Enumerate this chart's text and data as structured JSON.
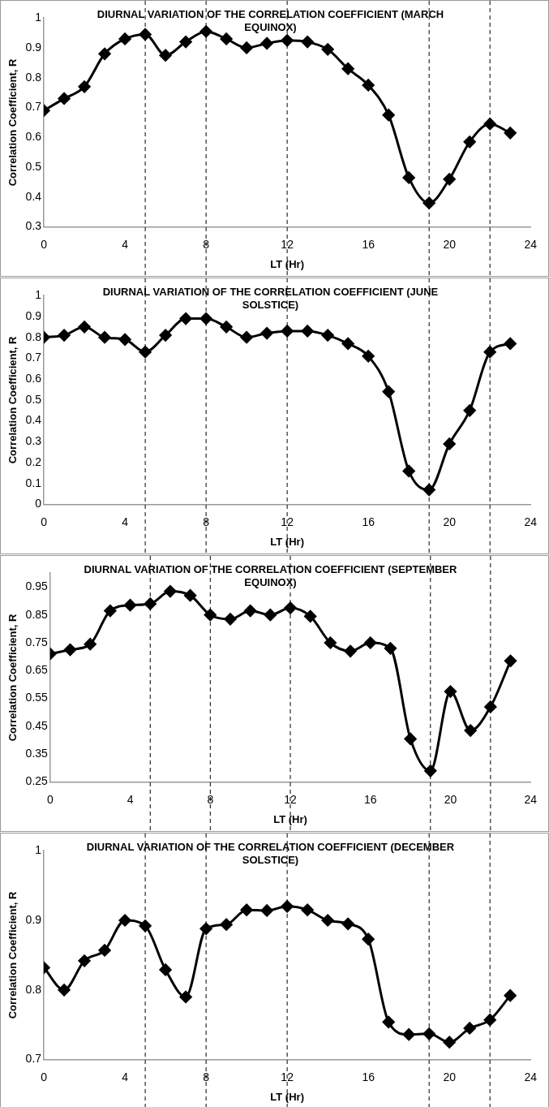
{
  "chart_data": [
    {
      "type": "line",
      "title": "DIURNAL VARIATION OF THE CORRELATION COEFFICIENT (MARCH EQUINOX)",
      "xlabel": "LT (Hr)",
      "ylabel": "Correlation Coefficient, R",
      "x": [
        0,
        1,
        2,
        3,
        4,
        5,
        6,
        7,
        8,
        9,
        10,
        11,
        12,
        13,
        14,
        15,
        16,
        17,
        18,
        19,
        20,
        21,
        22,
        23
      ],
      "series": [
        {
          "color": "#000000",
          "values": [
            0.69,
            0.73,
            0.77,
            0.88,
            0.93,
            0.945,
            0.875,
            0.92,
            0.955,
            0.93,
            0.9,
            0.915,
            0.925,
            0.92,
            0.895,
            0.83,
            0.775,
            0.675,
            0.465,
            0.38,
            0.46,
            0.585,
            0.645,
            0.615
          ]
        }
      ],
      "xlim": [
        0,
        24
      ],
      "xticks": [
        0,
        4,
        8,
        12,
        16,
        20,
        24
      ],
      "ylim": [
        0.3,
        1
      ],
      "yticks": [
        0.3,
        0.4,
        0.5,
        0.6,
        0.7,
        0.8,
        0.9,
        1
      ],
      "grid": false,
      "legend": false,
      "marker": "diamond",
      "line_style": "solid",
      "ref_lines": [
        {
          "axis": "x",
          "value": 5,
          "line_style": "dashed",
          "color": "#000000"
        },
        {
          "axis": "x",
          "value": 8,
          "line_style": "dashed",
          "color": "#000000"
        },
        {
          "axis": "x",
          "value": 12,
          "line_style": "dashed",
          "color": "#000000"
        },
        {
          "axis": "x",
          "value": 19,
          "line_style": "dashed",
          "color": "#000000"
        },
        {
          "axis": "x",
          "value": 22,
          "line_style": "dashed",
          "color": "#000000"
        }
      ]
    },
    {
      "type": "line",
      "title": "DIURNAL VARIATION OF THE CORRELATION COEFFICIENT (JUNE SOLSTICE)",
      "xlabel": "LT (Hr)",
      "ylabel": "Correlation Coefficient, R",
      "x": [
        0,
        1,
        2,
        3,
        4,
        5,
        6,
        7,
        8,
        9,
        10,
        11,
        12,
        13,
        14,
        15,
        16,
        17,
        18,
        19,
        20,
        21,
        22,
        23
      ],
      "series": [
        {
          "color": "#000000",
          "values": [
            0.8,
            0.81,
            0.85,
            0.8,
            0.79,
            0.73,
            0.81,
            0.89,
            0.89,
            0.85,
            0.8,
            0.82,
            0.83,
            0.83,
            0.81,
            0.77,
            0.71,
            0.54,
            0.16,
            0.07,
            0.29,
            0.45,
            0.73,
            0.77
          ]
        }
      ],
      "xlim": [
        0,
        24
      ],
      "xticks": [
        0,
        4,
        8,
        12,
        16,
        20,
        24
      ],
      "ylim": [
        0,
        1
      ],
      "yticks": [
        0,
        0.1,
        0.2,
        0.3,
        0.4,
        0.5,
        0.6,
        0.7,
        0.8,
        0.9,
        1
      ],
      "grid": false,
      "legend": false,
      "marker": "diamond",
      "line_style": "solid",
      "ref_lines": [
        {
          "axis": "x",
          "value": 5,
          "line_style": "dashed",
          "color": "#000000"
        },
        {
          "axis": "x",
          "value": 8,
          "line_style": "dashed",
          "color": "#000000"
        },
        {
          "axis": "x",
          "value": 12,
          "line_style": "dashed",
          "color": "#000000"
        },
        {
          "axis": "x",
          "value": 19,
          "line_style": "dashed",
          "color": "#000000"
        },
        {
          "axis": "x",
          "value": 22,
          "line_style": "dashed",
          "color": "#000000"
        }
      ]
    },
    {
      "type": "line",
      "title": "DIURNAL VARIATION OF THE CORRELATION COEFFICIENT (SEPTEMBER EQUINOX)",
      "xlabel": "LT (Hr)",
      "ylabel": "Correlation Coefficient, R",
      "x": [
        0,
        1,
        2,
        3,
        4,
        5,
        6,
        7,
        8,
        9,
        10,
        11,
        12,
        13,
        14,
        15,
        16,
        17,
        18,
        19,
        20,
        21,
        22,
        23
      ],
      "series": [
        {
          "color": "#000000",
          "values": [
            0.71,
            0.725,
            0.745,
            0.865,
            0.885,
            0.89,
            0.935,
            0.92,
            0.85,
            0.835,
            0.865,
            0.85,
            0.875,
            0.845,
            0.75,
            0.72,
            0.75,
            0.73,
            0.405,
            0.29,
            0.575,
            0.435,
            0.52,
            0.685
          ]
        }
      ],
      "xlim": [
        0,
        24
      ],
      "xticks": [
        0,
        4,
        8,
        12,
        16,
        20,
        24
      ],
      "ylim": [
        0.25,
        1
      ],
      "yticks": [
        0.25,
        0.35,
        0.45,
        0.55,
        0.65,
        0.75,
        0.85,
        0.95
      ],
      "grid": false,
      "legend": false,
      "marker": "diamond",
      "line_style": "solid",
      "ref_lines": [
        {
          "axis": "x",
          "value": 5,
          "line_style": "dashed",
          "color": "#000000"
        },
        {
          "axis": "x",
          "value": 8,
          "line_style": "dashed",
          "color": "#000000"
        },
        {
          "axis": "x",
          "value": 12,
          "line_style": "dashed",
          "color": "#000000"
        },
        {
          "axis": "x",
          "value": 19,
          "line_style": "dashed",
          "color": "#000000"
        },
        {
          "axis": "x",
          "value": 22,
          "line_style": "dashed",
          "color": "#000000"
        }
      ]
    },
    {
      "type": "line",
      "title": "DIURNAL VARIATION OF THE CORRELATION COEFFICIENT (DECEMBER SOLSTICE)",
      "xlabel": "LT (Hr)",
      "ylabel": "Correlation Coefficient, R",
      "x": [
        0,
        1,
        2,
        3,
        4,
        5,
        6,
        7,
        8,
        9,
        10,
        11,
        12,
        13,
        14,
        15,
        16,
        17,
        18,
        19,
        20,
        21,
        22,
        23
      ],
      "series": [
        {
          "color": "#000000",
          "values": [
            0.832,
            0.8,
            0.842,
            0.857,
            0.9,
            0.892,
            0.829,
            0.79,
            0.888,
            0.894,
            0.915,
            0.914,
            0.92,
            0.915,
            0.9,
            0.895,
            0.873,
            0.754,
            0.736,
            0.737,
            0.725,
            0.745,
            0.757,
            0.792
          ]
        }
      ],
      "xlim": [
        0,
        24
      ],
      "xticks": [
        0,
        4,
        8,
        12,
        16,
        20,
        24
      ],
      "ylim": [
        0.7,
        1
      ],
      "yticks": [
        0.7,
        0.8,
        0.9,
        1
      ],
      "grid": false,
      "legend": false,
      "marker": "diamond",
      "line_style": "solid",
      "ref_lines": [
        {
          "axis": "x",
          "value": 5,
          "line_style": "dashed",
          "color": "#000000"
        },
        {
          "axis": "x",
          "value": 8,
          "line_style": "dashed",
          "color": "#000000"
        },
        {
          "axis": "x",
          "value": 12,
          "line_style": "dashed",
          "color": "#000000"
        },
        {
          "axis": "x",
          "value": 19,
          "line_style": "dashed",
          "color": "#000000"
        },
        {
          "axis": "x",
          "value": 22,
          "line_style": "dashed",
          "color": "#000000"
        }
      ]
    }
  ]
}
